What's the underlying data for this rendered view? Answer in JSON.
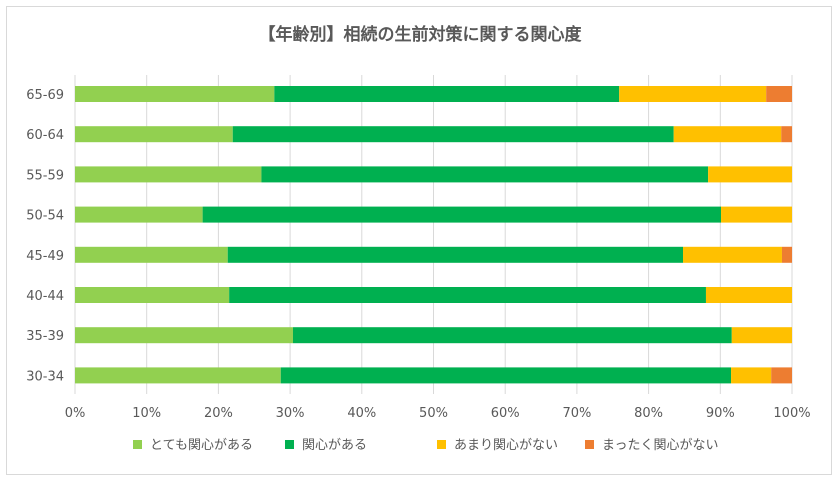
{
  "chart_data": {
    "type": "bar",
    "orientation": "horizontal",
    "stacked": "percent",
    "title": "【年齢別】相続の生前対策に関する関心度",
    "categories": [
      "65-69",
      "60-64",
      "55-59",
      "50-54",
      "45-49",
      "40-44",
      "35-39",
      "30-34"
    ],
    "x_ticks": [
      "0%",
      "10%",
      "20%",
      "30%",
      "40%",
      "50%",
      "60%",
      "70%",
      "80%",
      "90%",
      "100%"
    ],
    "xlim": [
      0,
      100
    ],
    "grid": true,
    "legend_position": "bottom",
    "series": [
      {
        "name": "とても関心がある",
        "color": "#92d050",
        "values": [
          27.8,
          22.0,
          26.0,
          17.8,
          21.3,
          21.5,
          30.4,
          28.7
        ]
      },
      {
        "name": "関心がある",
        "color": "#00b050",
        "values": [
          48.1,
          61.5,
          62.3,
          72.3,
          63.5,
          66.5,
          61.2,
          62.8
        ]
      },
      {
        "name": "あまり関心がない",
        "color": "#ffc000",
        "values": [
          20.5,
          15.0,
          11.7,
          9.9,
          13.8,
          12.0,
          8.4,
          5.6
        ]
      },
      {
        "name": "まったく関心がない",
        "color": "#ed7d31",
        "values": [
          3.6,
          1.5,
          0.0,
          0.0,
          1.4,
          0.0,
          0.0,
          2.9
        ]
      }
    ]
  }
}
